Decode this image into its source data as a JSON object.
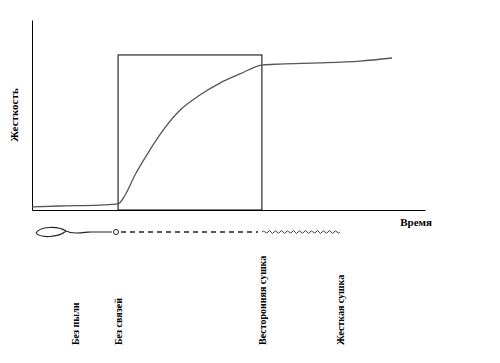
{
  "chart_data": {
    "type": "line",
    "x_label": "Время",
    "y_label": "Жесткость",
    "x": [
      0,
      7.1,
      17.3,
      21.9,
      23.7,
      26.2,
      30.0,
      33.8,
      37.7,
      42.7,
      47.8,
      52.9,
      58.5,
      63.1,
      73.3,
      83.5,
      91.6
    ],
    "values": [
      1.6,
      2.1,
      2.6,
      3.2,
      7.9,
      18.4,
      31.6,
      43.2,
      52.6,
      60.5,
      66.8,
      71.6,
      76.3,
      76.8,
      77.4,
      78.4,
      80.0
    ],
    "xlim": [
      0,
      100
    ],
    "ylim": [
      0,
      100
    ],
    "tick_labels": false,
    "color": "#555555",
    "highlight": {
      "x": [
        21.9,
        58.5
      ],
      "y": [
        0,
        81.6
      ]
    },
    "annotations": [
      {
        "text": "Без пыли",
        "x": 10.9
      },
      {
        "text": "Без связей",
        "x": 21.9
      },
      {
        "text": "Весторонняя сушка",
        "x": 58.5
      },
      {
        "text": "Жесткая сушка",
        "x": 78.4
      }
    ]
  }
}
